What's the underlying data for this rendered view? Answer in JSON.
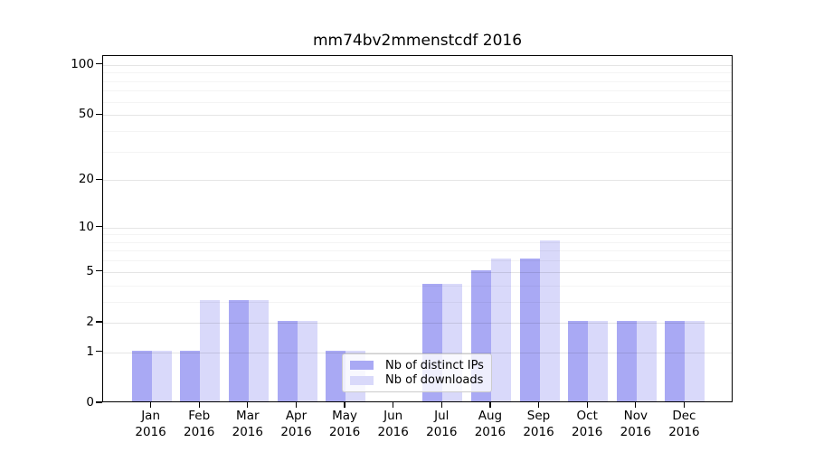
{
  "chart_data": {
    "type": "bar",
    "title": "mm74bv2mmenstcdf 2016",
    "categories": [
      "Jan 2016",
      "Feb 2016",
      "Mar 2016",
      "Apr 2016",
      "May 2016",
      "Jun 2016",
      "Jul 2016",
      "Aug 2016",
      "Sep 2016",
      "Oct 2016",
      "Nov 2016",
      "Dec 2016"
    ],
    "series": [
      {
        "name": "Nb of distinct IPs",
        "color": "#a9a9f4",
        "values": [
          1,
          1,
          3,
          2,
          1,
          0,
          4,
          5,
          6,
          2,
          2,
          2
        ]
      },
      {
        "name": "Nb of downloads",
        "color": "#d9d9fa",
        "values": [
          1,
          3,
          3,
          2,
          1,
          0,
          4,
          6,
          8,
          2,
          2,
          2
        ]
      }
    ],
    "xlabel": "",
    "ylabel": "",
    "yscale": "log1p",
    "ylim": [
      0,
      113
    ],
    "yticks_major": [
      0,
      1,
      2,
      5,
      10,
      20,
      50,
      100
    ],
    "yticks_minor": [
      3,
      4,
      6,
      7,
      8,
      9,
      30,
      40,
      60,
      70,
      80,
      90
    ],
    "grid": "horizontal",
    "legend_position": "lower-center-inside",
    "legend_labels": [
      "Nb of distinct IPs",
      "Nb of downloads"
    ]
  }
}
